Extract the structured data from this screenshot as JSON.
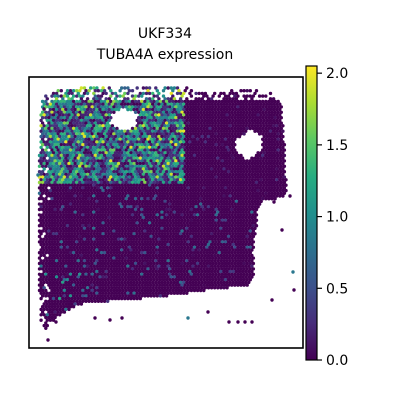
{
  "chart_data": {
    "type": "scatter",
    "title_line1": "UKF334",
    "title_line2": "TUBA4A expression",
    "xlabel": "",
    "ylabel": "",
    "grid": false,
    "colormap": "viridis",
    "colorbar": {
      "vmin": 0.0,
      "vmax": 2.05,
      "ticks": [
        0.0,
        0.5,
        1.0,
        1.5,
        2.0
      ],
      "tick_labels": [
        "0.0",
        "0.5",
        "1.0",
        "1.5",
        "2.0"
      ]
    },
    "region_expression_summary": [
      {
        "region": "upper-left",
        "typical_value": 1.0,
        "max_value": 2.0
      },
      {
        "region": "upper-right",
        "typical_value": 0.0,
        "max_value": 0.3
      },
      {
        "region": "middle",
        "typical_value": 0.05,
        "max_value": 0.8
      },
      {
        "region": "lower-left",
        "typical_value": 0.05,
        "max_value": 1.2
      }
    ]
  }
}
